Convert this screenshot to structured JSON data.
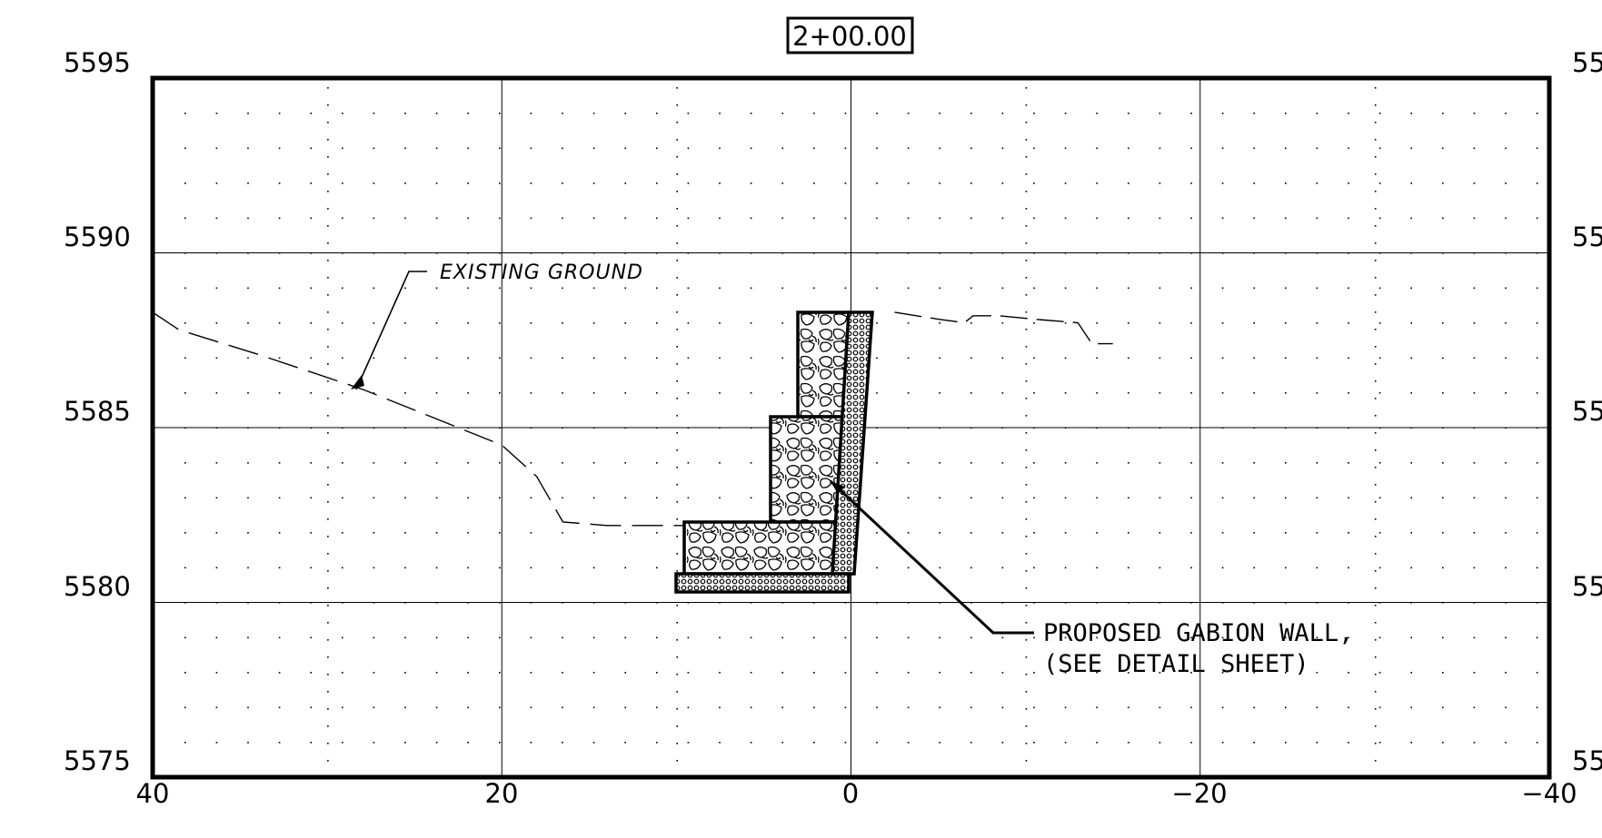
{
  "station_label": "2+00.00",
  "axes": {
    "x_ticks": [
      "40",
      "20",
      "0",
      "−20",
      "−40"
    ],
    "y_ticks_left": [
      "5595",
      "5590",
      "5585",
      "5580",
      "5575"
    ],
    "y_ticks_right": [
      "55",
      "55",
      "55",
      "55",
      "55"
    ],
    "x_range": [
      40,
      -40
    ],
    "y_range": [
      5575,
      5595
    ]
  },
  "annotations": {
    "existing_ground": "EXISTING GROUND",
    "gabion_line1": "PROPOSED GABION WALL,",
    "gabion_line2": "(SEE DETAIL SHEET)"
  },
  "existing_ground_profile": [
    [
      40,
      5588.3
    ],
    [
      38.5,
      5587.8
    ],
    [
      34,
      5587.1
    ],
    [
      28,
      5586.1
    ],
    [
      24,
      5585.3
    ],
    [
      20,
      5584.5
    ],
    [
      18,
      5583.6
    ],
    [
      16.5,
      5582.3
    ],
    [
      14,
      5582.2
    ],
    [
      12,
      5582.2
    ],
    [
      9.5,
      5582.2
    ],
    [
      8,
      5582.2
    ],
    [
      4,
      5582.3
    ],
    [
      1,
      5582.4
    ]
  ],
  "existing_ground_profile_right": [
    [
      -2.5,
      5588.3
    ],
    [
      -5,
      5588.1
    ],
    [
      -6.5,
      5588.0
    ],
    [
      -7,
      5588.2
    ],
    [
      -8.5,
      5588.2
    ],
    [
      -10.5,
      5588.1
    ],
    [
      -13,
      5588.0
    ],
    [
      -13.8,
      5587.4
    ],
    [
      -15,
      5587.4
    ]
  ],
  "colors": {
    "line": "#000000",
    "background": "#ffffff"
  }
}
